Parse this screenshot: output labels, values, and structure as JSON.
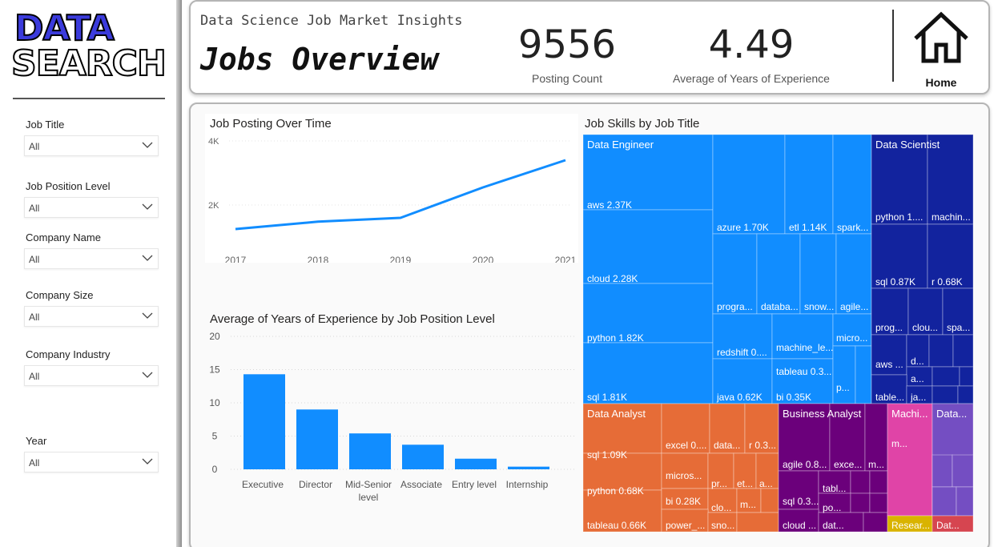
{
  "logo": {
    "line1": "DATA",
    "line2": "SEARCH"
  },
  "filters": [
    {
      "label": "Job Title",
      "value": "All"
    },
    {
      "label": "Job Position Level",
      "value": "All"
    },
    {
      "label": "Company Name",
      "value": "All"
    },
    {
      "label": "Company Size",
      "value": "All"
    },
    {
      "label": "Company Industry",
      "value": "All"
    },
    {
      "label": "Year",
      "value": "All"
    }
  ],
  "header": {
    "subtitle": "Data Science Job Market Insights",
    "title": "Jobs Overview",
    "kpis": [
      {
        "value": "9556",
        "caption": "Posting Count"
      },
      {
        "value": "4.49",
        "caption": "Average of Years of Experience"
      }
    ],
    "home_label": "Home"
  },
  "colors": {
    "accent": "#118dff",
    "data_engineer": "#118dff",
    "data_scientist": "#12239e",
    "data_analyst": "#e66c37",
    "business_analyst": "#6b007b",
    "machine_learning": "#e044a7",
    "data_other": "#744ec2",
    "research": "#d9b300",
    "data_small": "#d64550"
  },
  "chart_data": [
    {
      "type": "line",
      "title": "Job Posting Over Time",
      "x": [
        "2017",
        "2018",
        "2019",
        "2020",
        "2021"
      ],
      "values": [
        1250,
        1480,
        1600,
        2550,
        3400
      ],
      "yticks": [
        "2K",
        "4K"
      ],
      "ylim": [
        700,
        4000
      ],
      "xlabel": "",
      "ylabel": ""
    },
    {
      "type": "bar",
      "title": "Average of Years of Experience by Job Position Level",
      "categories": [
        "Executive",
        "Director",
        "Mid-Senior level",
        "Associate",
        "Entry level",
        "Internship"
      ],
      "category_lines": [
        [
          "Executive"
        ],
        [
          "Director"
        ],
        [
          "Mid-Senior",
          "level"
        ],
        [
          "Associate"
        ],
        [
          "Entry level"
        ],
        [
          "Internship"
        ]
      ],
      "values": [
        14.3,
        9,
        5.4,
        3.7,
        1.6,
        0.4
      ],
      "yticks": [
        "0",
        "5",
        "10",
        "15",
        "20"
      ],
      "ylim": [
        0,
        20
      ],
      "xlabel": "",
      "ylabel": ""
    },
    {
      "type": "treemap",
      "title": "Job Skills by Job Title",
      "groups": [
        {
          "name": "Data Engineer",
          "color": "data_engineer",
          "labels": [
            "aws 2.37K",
            "cloud 2.28K",
            "python 1.82K",
            "sql 1.81K",
            "azure 1.70K",
            "etl 1.14K",
            "spark...",
            "progra...",
            "databa...",
            "snow...",
            "agile...",
            "redshift 0....",
            "machine_le...",
            "tableau 0.3...",
            "micro...",
            "java 0.62K",
            "bi 0.35K",
            "p..."
          ]
        },
        {
          "name": "Data Scientist",
          "color": "data_scientist",
          "labels": [
            "python 1....",
            "machin...",
            "sql 0.87K",
            "r 0.68K",
            "prog...",
            "clou...",
            "spa...",
            "aws ...",
            "d...",
            "a...",
            "table...",
            "ja..."
          ]
        },
        {
          "name": "Data Analyst",
          "color": "data_analyst",
          "labels": [
            "sql 1.09K",
            "python 0.68K",
            "tableau 0.66K",
            "excel 0....",
            "data...",
            "r 0.3...",
            "micros...",
            "pr...",
            "et...",
            "a...",
            "bi 0.28K",
            "clo...",
            "m...",
            "power_...",
            "sno..."
          ]
        },
        {
          "name": "Business Analyst",
          "color": "business_analyst",
          "labels": [
            "agile 0.8...",
            "exce...",
            "m...",
            "tabl...",
            "sql 0.3...",
            "po...",
            "cloud ...",
            "dat..."
          ]
        },
        {
          "name": "Machi...",
          "color": "machine_learning",
          "labels": [
            "m..."
          ]
        },
        {
          "name": "Data...",
          "color": "data_other",
          "labels": []
        },
        {
          "name": "Resear...",
          "color": "research",
          "labels": []
        },
        {
          "name": "Dat...",
          "color": "data_small",
          "labels": []
        }
      ]
    }
  ]
}
